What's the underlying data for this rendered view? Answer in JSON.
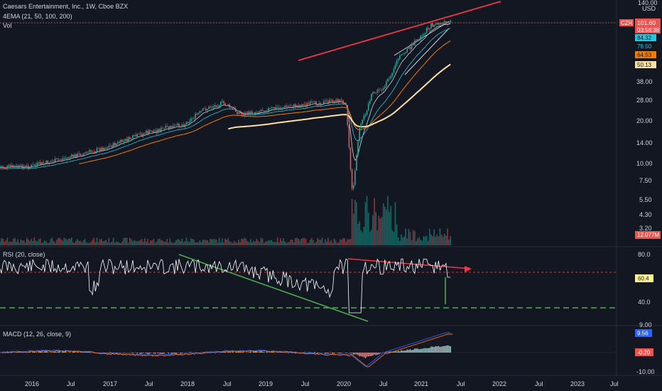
{
  "header": {
    "title": "Caesars Entertainment, Inc., 1W, Cboe BZX",
    "ema_legend": "4EMA (21, 50, 100, 200)",
    "vol_legend": "Vol",
    "rsi_legend": "RSI (20, close)",
    "macd_legend": "MACD (12, 26, close, 9)"
  },
  "price_axis": {
    "currency": "USD",
    "ticks": [
      "140.00",
      "38.00",
      "28.00",
      "20.00",
      "14.00",
      "10.00",
      "7.50",
      "5.50",
      "4.30",
      "3.20"
    ],
    "scale": "log"
  },
  "price_badges": {
    "symbol": "CZR",
    "last": "101.60",
    "countdown": "03:58:38",
    "ema21": "84.32",
    "ema50": "78.50",
    "ema100": "64.53",
    "ema200": "50.13",
    "volume": "12.077M"
  },
  "rsi_axis": {
    "ticks": [
      "80.0",
      "40.0"
    ],
    "value": "60.4"
  },
  "macd_axis": {
    "ticks": [
      "9.00",
      "-10.00"
    ],
    "macd_value": "9.56",
    "hist_value": "-0.20"
  },
  "time_axis": [
    "2016",
    "Jul",
    "2017",
    "Jul",
    "2018",
    "Jul",
    "2019",
    "Jul",
    "2020",
    "Jul",
    "2021",
    "Jul",
    "2022",
    "Jul",
    "2023",
    "Jul"
  ],
  "colors": {
    "background": "#131722",
    "up": "#26a69a",
    "down": "#ef5350",
    "ema21": "#d1d4dc",
    "ema50": "#26c6da",
    "ema100": "#f57c00",
    "ema200": "#ffe0a0",
    "trend_red": "#f23645",
    "trend_green": "#4caf50",
    "rsi_line": "#ffffff",
    "macd_line": "#2962ff",
    "signal_line": "#ff6d00"
  },
  "chart_data": {
    "type": "line",
    "title": "Caesars Entertainment, Inc., 1W, Cboe BZX",
    "x": [
      "2016-01",
      "2016-07",
      "2017-01",
      "2017-07",
      "2018-01",
      "2018-04",
      "2018-07",
      "2018-10",
      "2019-01",
      "2019-07",
      "2020-01",
      "2020-02",
      "2020-03",
      "2020-04",
      "2020-06",
      "2020-08",
      "2020-10",
      "2021-01",
      "2021-03",
      "2021-06"
    ],
    "series": [
      {
        "name": "CZR",
        "values": [
          9.5,
          11,
          13,
          16.5,
          19,
          24,
          27,
          22,
          24,
          26,
          28,
          27,
          5.8,
          17,
          31,
          35,
          55,
          75,
          95,
          101.6
        ]
      }
    ],
    "ylim": [
      3.2,
      140
    ],
    "grid": false,
    "rsi": {
      "label": "RSI (20, close)",
      "current": 60.4,
      "levels": [
        40,
        60
      ]
    },
    "macd": {
      "label": "MACD (12, 26, close, 9)",
      "macd": 9.56,
      "histogram": -0.2
    }
  }
}
